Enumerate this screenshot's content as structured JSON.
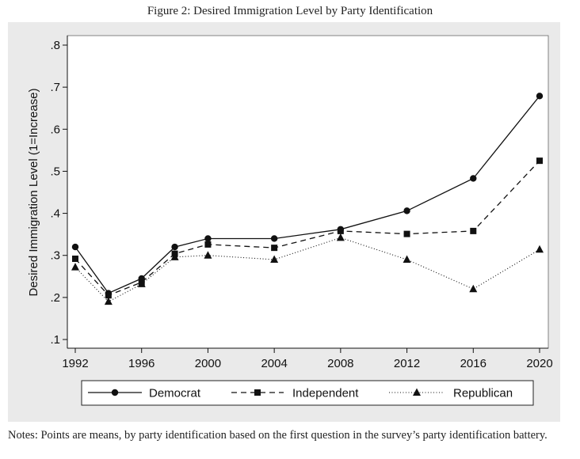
{
  "title": "Figure 2: Desired Immigration Level by Party Identification",
  "notes": "Notes: Points are means, by party identification based on the first question in the survey’s party identification battery.",
  "chart_data": {
    "type": "line",
    "title": "Figure 2: Desired Immigration Level by Party Identification",
    "xlabel": "",
    "ylabel": "Desired Immigration Level (1=Increase)",
    "x": [
      1992,
      1994,
      1996,
      1998,
      2000,
      2004,
      2008,
      2012,
      2016,
      2020
    ],
    "x_ticks": [
      "1992",
      "1996",
      "2000",
      "2004",
      "2008",
      "2012",
      "2016",
      "2020"
    ],
    "y_ticks": [
      ".1",
      ".2",
      ".3",
      ".4",
      ".5",
      ".6",
      ".7",
      ".8"
    ],
    "xlim": [
      1992,
      2020
    ],
    "ylim": [
      0.1,
      0.8
    ],
    "grid": false,
    "legend_position": "bottom",
    "series": [
      {
        "name": "Democrat",
        "line_style": "solid",
        "marker": "circle",
        "values": [
          0.32,
          0.21,
          0.245,
          0.32,
          0.34,
          0.34,
          0.362,
          0.406,
          0.483,
          0.679
        ]
      },
      {
        "name": "Independent",
        "line_style": "dashed",
        "marker": "square",
        "values": [
          0.292,
          0.205,
          0.236,
          0.304,
          0.326,
          0.318,
          0.358,
          0.351,
          0.358,
          0.525
        ]
      },
      {
        "name": "Republican",
        "line_style": "dotted",
        "marker": "triangle",
        "values": [
          0.272,
          0.19,
          0.232,
          0.296,
          0.3,
          0.29,
          0.342,
          0.29,
          0.22,
          0.314
        ]
      }
    ]
  }
}
